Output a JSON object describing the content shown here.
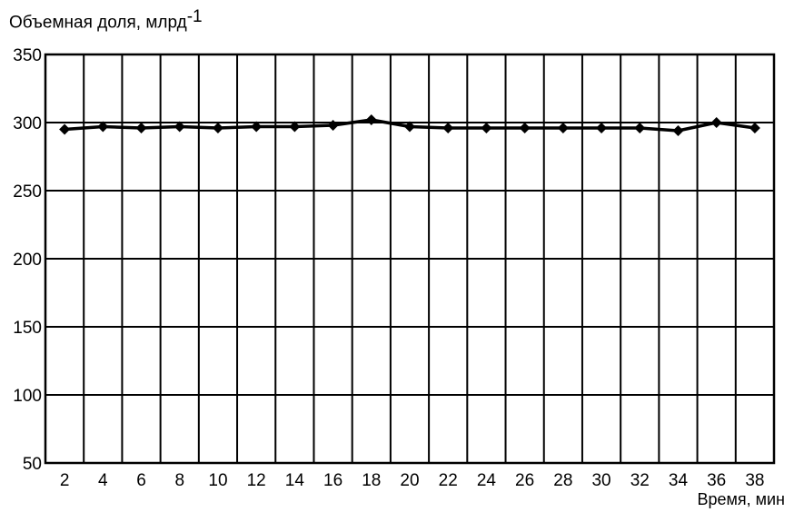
{
  "chart_data": {
    "type": "line",
    "ylabel_main": "Объемная доля, млрд",
    "ylabel_sup": "-1",
    "xlabel": "Время, мин",
    "ylim": [
      50,
      350
    ],
    "yticks": [
      50,
      100,
      150,
      200,
      250,
      300,
      350
    ],
    "x_categories": [
      "2",
      "4",
      "6",
      "8",
      "10",
      "12",
      "14",
      "16",
      "18",
      "20",
      "22",
      "24",
      "26",
      "28",
      "30",
      "32",
      "34",
      "36",
      "38"
    ],
    "x": [
      2,
      4,
      6,
      8,
      10,
      12,
      14,
      16,
      18,
      20,
      22,
      24,
      26,
      28,
      30,
      32,
      34,
      36,
      38
    ],
    "values": [
      295,
      297,
      296,
      297,
      296,
      297,
      297,
      298,
      302,
      297,
      296,
      296,
      296,
      296,
      296,
      296,
      294,
      300,
      296
    ],
    "grid": true,
    "marker": "diamond",
    "color": "#000000"
  }
}
